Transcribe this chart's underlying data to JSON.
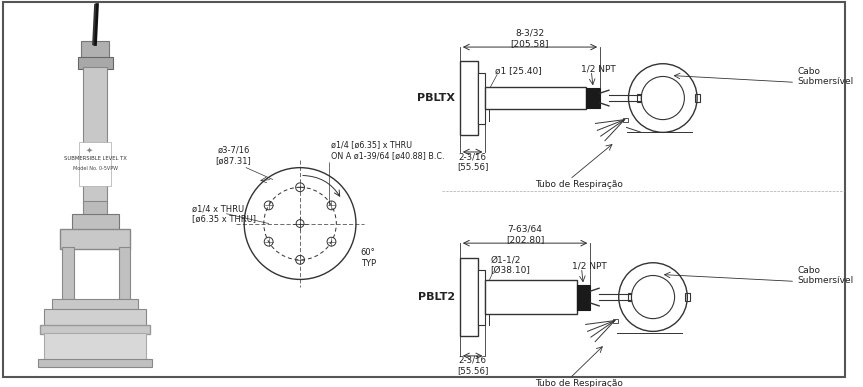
{
  "bg_color": "#ffffff",
  "line_color": "#333333",
  "text_color": "#222222",
  "pbltx_label": "PBLTX",
  "pblt2_label": "PBLT2",
  "dim1_label": "8-3/32\n[205.58]",
  "dim2_label": "7-63/64\n[202.80]",
  "dim3_label": "ø1 [25.40]",
  "dim4_label": "Ø1-1/2\n[Ø38.10]",
  "npt1_label": "1/2 NPT",
  "npt2_label": "1/2 NPT",
  "cable1_label": "Cabo\nSubmersível",
  "cable2_label": "Cabo\nSubmersível",
  "breath1_label": "Tubo de Respiração",
  "breath2_label": "Tubo de Respiração",
  "dim_small1": "2-3/16\n[55.56]",
  "dim_small2": "2-3/16\n[55.56]",
  "circ_label1": "ø3-7/16\n[ø87.31]",
  "circ_label2": "ø1/4 x THRU\n[ø6.35 x THRU]",
  "circ_label3": "ø1/4 [ø6.35] x THRU\nON A ø1-39/64 [ø40.88] B.C.",
  "angle_label": "60°\nTYP"
}
